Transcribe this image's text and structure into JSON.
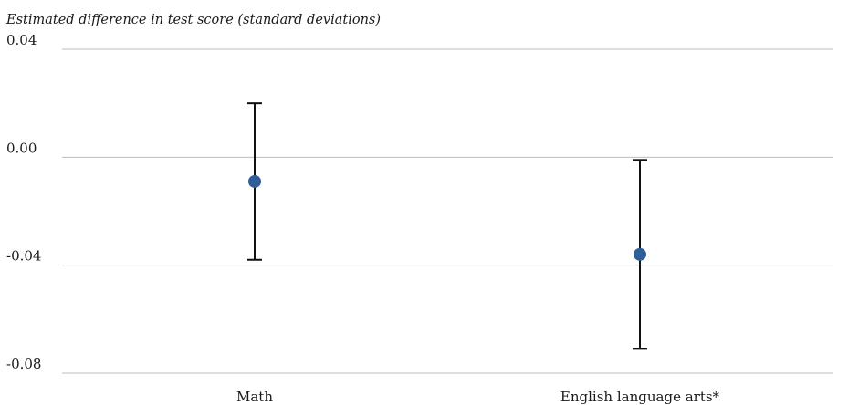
{
  "chart_data": {
    "type": "scatter",
    "ylabel": "Estimated difference in test score (standard deviations)",
    "categories": [
      "Math",
      "English language arts*"
    ],
    "points": [
      {
        "category": "Math",
        "estimate": -0.009,
        "lower": -0.038,
        "upper": 0.02
      },
      {
        "category": "English language arts*",
        "estimate": -0.036,
        "lower": -0.071,
        "upper": -0.001
      }
    ],
    "ylim": [
      -0.08,
      0.04
    ],
    "yticks": [
      {
        "value": 0.04,
        "label": "0.04"
      },
      {
        "value": 0.0,
        "label": "0.00"
      },
      {
        "value": -0.04,
        "label": "-0.04"
      },
      {
        "value": -0.08,
        "label": "-0.08"
      }
    ],
    "grid": true,
    "error_bars": true,
    "colors": {
      "point": "#2e5f96",
      "error_bar": "#111111",
      "grid": "#bdbdbd"
    }
  }
}
